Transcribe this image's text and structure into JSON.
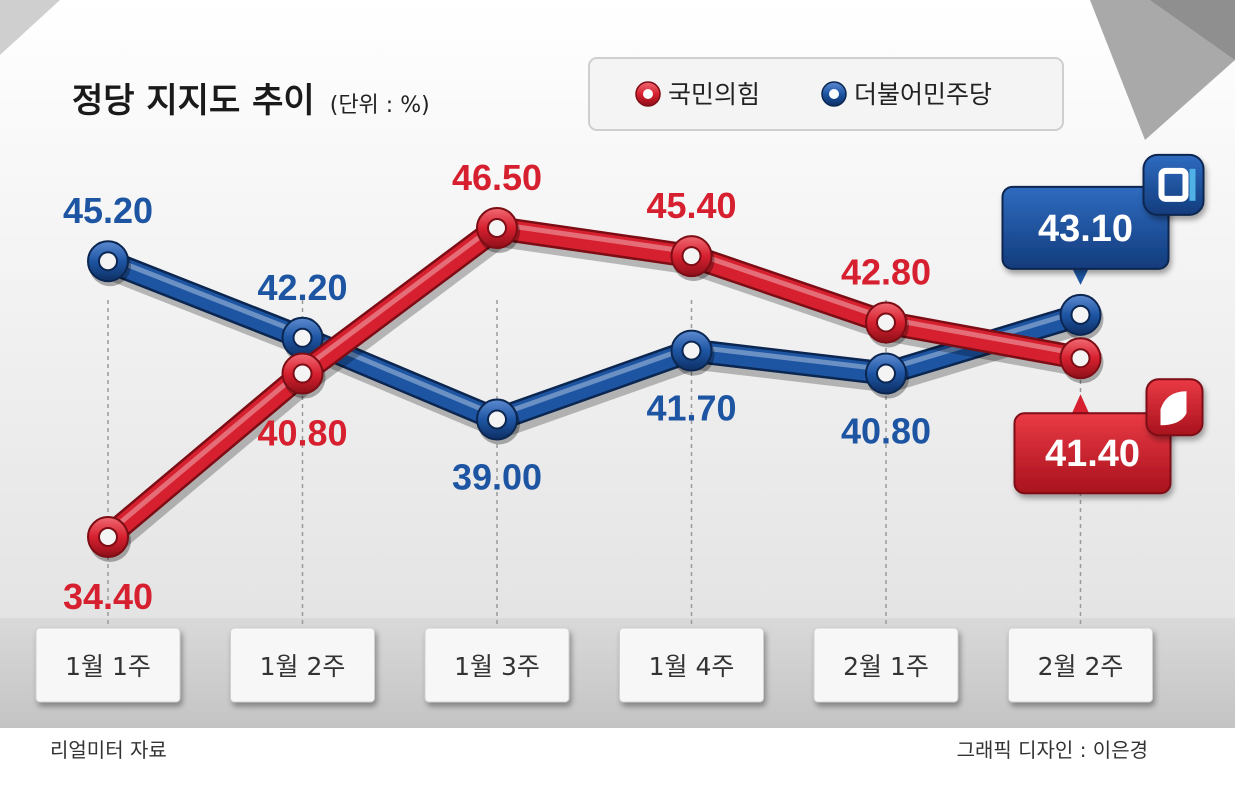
{
  "chart_data": {
    "type": "line",
    "title": "정당 지지도 추이",
    "unit": "(단위 : %)",
    "categories": [
      "1월 1주",
      "1월 2주",
      "1월 3주",
      "1월 4주",
      "2월 1주",
      "2월 2주"
    ],
    "series": [
      {
        "name": "국민의힘",
        "color": "#d7202f",
        "values": [
          34.4,
          40.8,
          46.5,
          45.4,
          42.8,
          41.4
        ],
        "labels": [
          "34.40",
          "40.80",
          "46.50",
          "45.40",
          "42.80",
          "41.40"
        ]
      },
      {
        "name": "더불어민주당",
        "color": "#1d55a3",
        "values": [
          45.2,
          42.2,
          39.0,
          41.7,
          40.8,
          43.1
        ],
        "labels": [
          "45.20",
          "42.20",
          "39.00",
          "41.70",
          "40.80",
          "43.10"
        ]
      }
    ],
    "legend_position": "top-right",
    "grid": false,
    "source": "리얼미터 자료",
    "credit": "그래픽 디자인 : 이은경"
  }
}
